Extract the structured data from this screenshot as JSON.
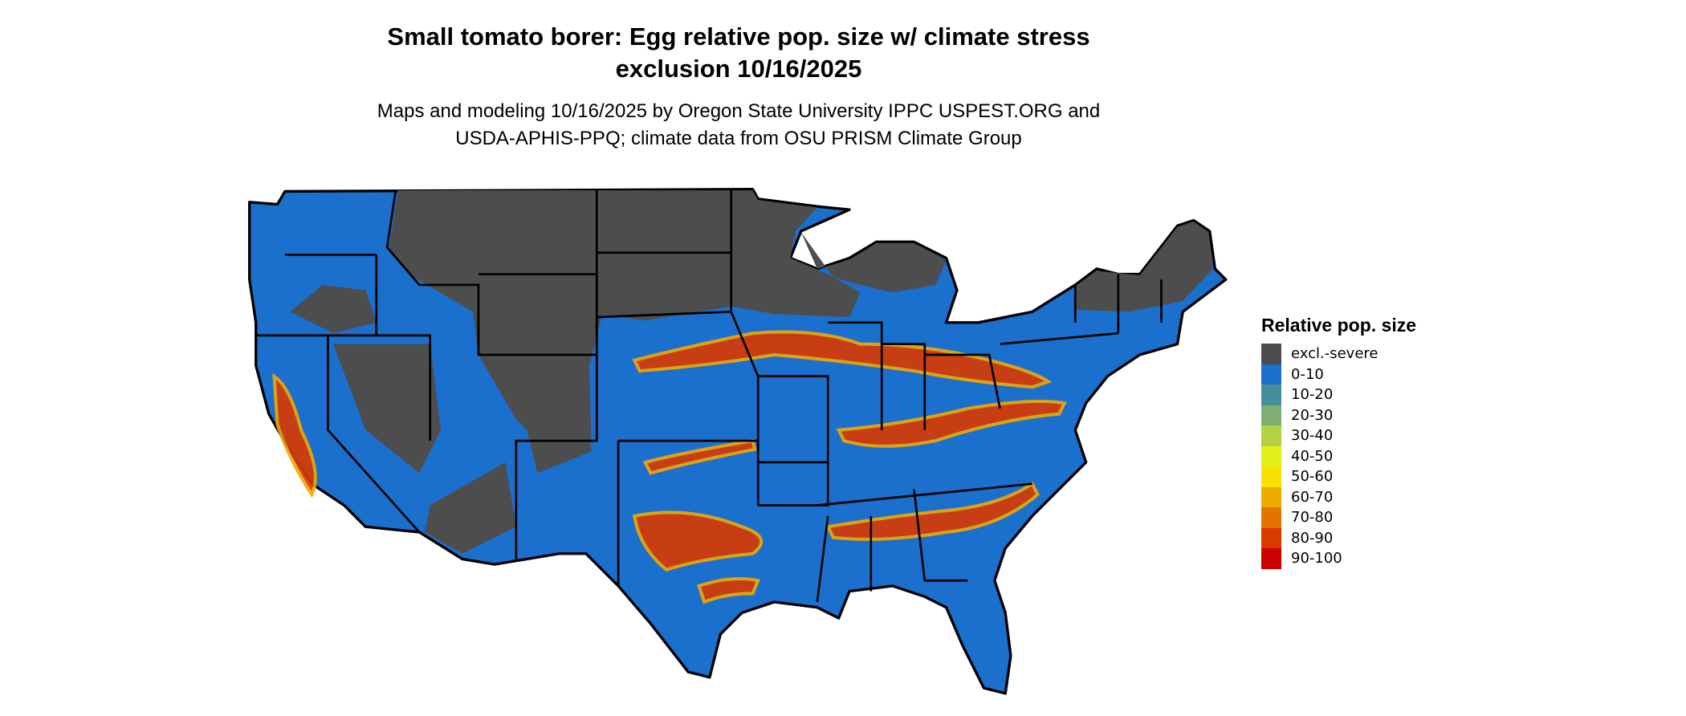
{
  "title": {
    "line1": "Small tomato borer: Egg relative pop. size w/ climate stress",
    "line2": "exclusion 10/16/2025"
  },
  "subtitle": {
    "line1": "Maps and modeling 10/16/2025 by Oregon State University IPPC USPEST.ORG and",
    "line2": "USDA-APHIS-PPQ; climate data from OSU PRISM Climate Group"
  },
  "legend": {
    "title": "Relative pop. size",
    "items": [
      {
        "label": "excl.-severe",
        "color": "#4d4d4d"
      },
      {
        "label": "0-10",
        "color": "#1b6fcd"
      },
      {
        "label": "10-20",
        "color": "#478e9c"
      },
      {
        "label": "20-30",
        "color": "#7eaf72"
      },
      {
        "label": "30-40",
        "color": "#b2d145"
      },
      {
        "label": "40-50",
        "color": "#e2f01a"
      },
      {
        "label": "50-60",
        "color": "#f9e000"
      },
      {
        "label": "60-70",
        "color": "#efaa00"
      },
      {
        "label": "70-80",
        "color": "#e47400"
      },
      {
        "label": "80-90",
        "color": "#da3900"
      },
      {
        "label": "90-100",
        "color": "#cc0000"
      }
    ]
  }
}
